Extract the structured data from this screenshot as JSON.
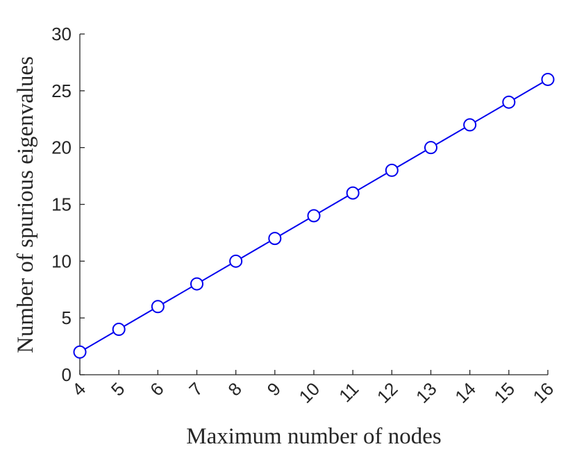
{
  "chart_data": {
    "type": "line",
    "xlabel": "Maximum number of nodes",
    "ylabel": "Number of spurious eigenvalues",
    "x": [
      4,
      5,
      6,
      7,
      8,
      9,
      10,
      11,
      12,
      13,
      14,
      15,
      16
    ],
    "series": [
      {
        "values": [
          2,
          4,
          6,
          8,
          10,
          12,
          14,
          16,
          18,
          20,
          22,
          24,
          26
        ]
      }
    ],
    "xlim": [
      4,
      16
    ],
    "ylim": [
      0,
      30
    ],
    "xticks": [
      4,
      5,
      6,
      7,
      8,
      9,
      10,
      11,
      12,
      13,
      14,
      15,
      16
    ],
    "yticks": [
      0,
      5,
      10,
      15,
      20,
      25,
      30
    ],
    "xtick_rotation_deg": 45,
    "marker": "open-circle",
    "line_color": "#0000ee",
    "axis_color": "#262626",
    "grid": false,
    "box": false
  }
}
